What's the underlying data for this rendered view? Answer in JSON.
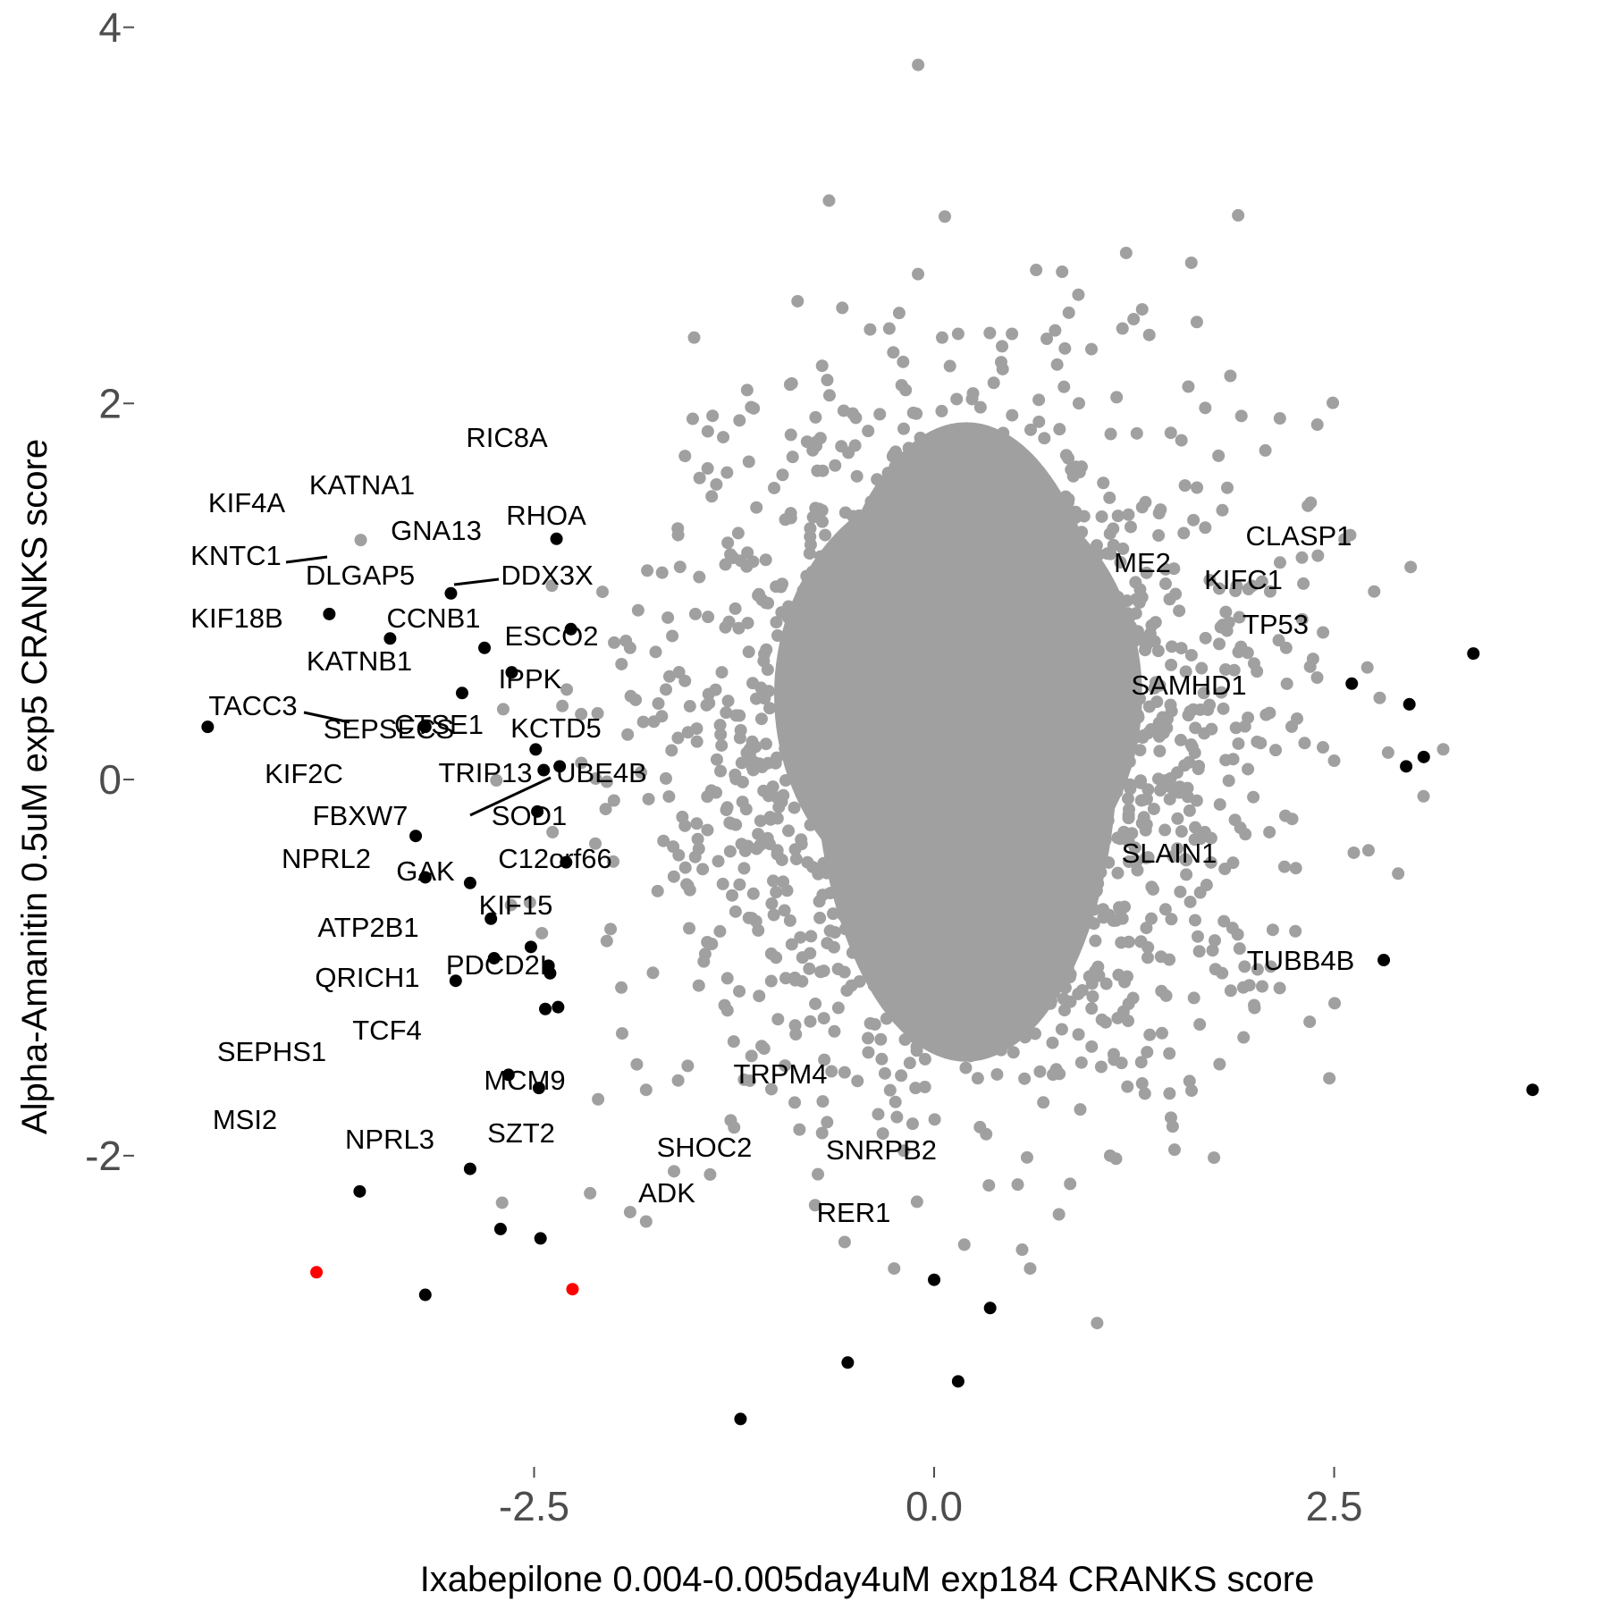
{
  "chart_data": {
    "type": "scatter",
    "xlabel": "Ixabepilone 0.004-0.005day4uM exp184 CRANKS score",
    "ylabel": "Alpha-Amanitin 0.5uM exp5 CRANKS score",
    "xlim": [
      -5.0,
      4.05
    ],
    "ylim": [
      -3.65,
      4.05
    ],
    "x_ticks": [
      -2.5,
      0.0,
      2.5
    ],
    "x_tick_labels": [
      "-2.5",
      "0.0",
      "2.5"
    ],
    "y_ticks": [
      -2,
      0,
      2,
      4
    ],
    "y_tick_labels": [
      "-2",
      "0",
      "2",
      "4"
    ],
    "grid": false,
    "legend": "none",
    "colors": {
      "background": "#f0f0f0",
      "hidden": "#a0a0a0",
      "highlighted": "#000000",
      "special": "#ff0000"
    },
    "background_cloud": {
      "note_hidden_points": "dense cloud of unlabeled genes, centered near (0.2, 0.2)",
      "points": [
        [
          -0.1,
          3.8
        ],
        [
          1.9,
          3.0
        ],
        [
          1.2,
          2.8
        ],
        [
          0.8,
          2.7
        ],
        [
          1.3,
          2.5
        ],
        [
          -1.5,
          2.35
        ],
        [
          0.05,
          2.35
        ],
        [
          0.15,
          2.37
        ],
        [
          -0.7,
          2.2
        ],
        [
          -0.9,
          2.1
        ],
        [
          2.07,
          1.75
        ],
        [
          2.6,
          1.3
        ],
        [
          2.75,
          1.0
        ],
        [
          -1.7,
          1.1
        ],
        [
          -1.0,
          1.55
        ],
        [
          2.9,
          -0.5
        ],
        [
          2.05,
          -1.1
        ],
        [
          2.0,
          -1.2
        ],
        [
          -1.95,
          -1.35
        ],
        [
          -1.8,
          -1.65
        ],
        [
          -1.6,
          -1.6
        ],
        [
          -1.25,
          -1.85
        ],
        [
          -2.1,
          -1.7
        ],
        [
          -0.25,
          -2.6
        ],
        [
          0.55,
          -2.5
        ],
        [
          0.6,
          -2.6
        ],
        [
          -1.8,
          -2.35
        ],
        [
          -1.9,
          -2.3
        ],
        [
          -2.15,
          -2.2
        ],
        [
          -2.7,
          -2.25
        ],
        [
          -1.4,
          -2.1
        ],
        [
          1.1,
          -2.0
        ],
        [
          0.85,
          -2.15
        ],
        [
          2.5,
          0.1
        ],
        [
          2.35,
          0.6
        ],
        [
          2.2,
          0.7
        ],
        [
          2.1,
          1.0
        ],
        [
          -1.9,
          0.7
        ],
        [
          -1.85,
          0.9
        ],
        [
          -1.6,
          1.3
        ]
      ]
    },
    "labeled_genes": [
      {
        "gene": "RIC8A",
        "x": -2.36,
        "y": 1.28,
        "color": "black"
      },
      {
        "gene": "KATNA1",
        "x": -3.02,
        "y": 0.99,
        "color": "black"
      },
      {
        "gene": "KIF4A",
        "x": -3.78,
        "y": 0.88,
        "color": "black"
      },
      {
        "gene": "RHOA",
        "x": -2.27,
        "y": 0.8,
        "color": "black"
      },
      {
        "gene": "GNA13",
        "x": -2.81,
        "y": 0.7,
        "color": "black"
      },
      {
        "gene": "KNTC1",
        "x": -3.4,
        "y": 0.75,
        "color": "black"
      },
      {
        "gene": "DDX3X",
        "x": -2.64,
        "y": 0.57,
        "color": "black"
      },
      {
        "gene": "DLGAP5",
        "x": -2.95,
        "y": 0.46,
        "color": "black"
      },
      {
        "gene": "KIF18B",
        "x": -4.54,
        "y": 0.28,
        "color": "black"
      },
      {
        "gene": "CCNB1",
        "x": -3.18,
        "y": 0.28,
        "color": "black"
      },
      {
        "gene": "ESCO2",
        "x": -2.49,
        "y": 0.16,
        "color": "black"
      },
      {
        "gene": "KATNB1",
        "x": -2.44,
        "y": 0.05,
        "color": "black"
      },
      {
        "gene": "IPPK",
        "x": -2.34,
        "y": 0.07,
        "color": "black"
      },
      {
        "gene": "TACC3",
        "x": -3.24,
        "y": -0.3,
        "color": "black"
      },
      {
        "gene": "CTSE1",
        "x": -2.48,
        "y": -0.17,
        "color": "black"
      },
      {
        "gene": "SEPSECS",
        "x": -3.18,
        "y": -0.52,
        "color": "black"
      },
      {
        "gene": "KCTD5",
        "x": -2.3,
        "y": -0.44,
        "color": "black"
      },
      {
        "gene": "KIF2C",
        "x": -2.9,
        "y": -0.55,
        "color": "black"
      },
      {
        "gene": "TRIP13",
        "x": -2.77,
        "y": -0.74,
        "color": "black"
      },
      {
        "gene": "UBE4B",
        "x": -2.52,
        "y": -0.89,
        "color": "black"
      },
      {
        "gene": "FBXW7",
        "x": -2.75,
        "y": -0.95,
        "color": "black"
      },
      {
        "gene": "SOD1",
        "x": -2.41,
        "y": -0.99,
        "color": "black"
      },
      {
        "gene": "NPRL2",
        "x": -2.99,
        "y": -1.07,
        "color": "black"
      },
      {
        "gene": "C12orf66",
        "x": -2.35,
        "y": -1.21,
        "color": "black"
      },
      {
        "gene": "GAK",
        "x": -2.43,
        "y": -1.22,
        "color": "black"
      },
      {
        "gene": "ATP2B1",
        "x": -2.66,
        "y": -1.57,
        "color": "black"
      },
      {
        "gene": "PDCD2L",
        "x": -2.47,
        "y": -1.64,
        "color": "black"
      },
      {
        "gene": "KIF15",
        "x": -2.4,
        "y": -1.03,
        "color": "black"
      },
      {
        "gene": "QRICH1",
        "x": -2.9,
        "y": -2.07,
        "color": "black"
      },
      {
        "gene": "SEPHS1",
        "x": -3.59,
        "y": -2.19,
        "color": "black"
      },
      {
        "gene": "TCF4",
        "x": -2.71,
        "y": -2.39,
        "color": "black"
      },
      {
        "gene": "MCM9",
        "x": -2.46,
        "y": -2.44,
        "color": "black"
      },
      {
        "gene": "MSI2",
        "x": -3.86,
        "y": -2.62,
        "color": "red"
      },
      {
        "gene": "SZT2",
        "x": -2.26,
        "y": -2.71,
        "color": "red"
      },
      {
        "gene": "NPRL3",
        "x": -3.18,
        "y": -2.74,
        "color": "black"
      },
      {
        "gene": "TRPM4",
        "x": 0.0,
        "y": -2.66,
        "color": "black"
      },
      {
        "gene": "SNRPB2",
        "x": 0.35,
        "y": -2.81,
        "color": "black"
      },
      {
        "gene": "SHOC2",
        "x": -0.54,
        "y": -3.1,
        "color": "black"
      },
      {
        "gene": "RER1",
        "x": 0.15,
        "y": -3.2,
        "color": "black"
      },
      {
        "gene": "ADK",
        "x": -1.21,
        "y": -3.4,
        "color": "black"
      },
      {
        "gene": "CLASP1",
        "x": 3.37,
        "y": 0.67,
        "color": "black"
      },
      {
        "gene": "ME2",
        "x": 2.61,
        "y": 0.51,
        "color": "black"
      },
      {
        "gene": "KIFC1",
        "x": 2.97,
        "y": 0.4,
        "color": "black"
      },
      {
        "gene": "TP53",
        "x": 3.06,
        "y": 0.12,
        "color": "black"
      },
      {
        "gene": "SAMHD1",
        "x": 2.95,
        "y": 0.07,
        "color": "black"
      },
      {
        "gene": "SLAIN1",
        "x": 2.81,
        "y": -0.96,
        "color": "black"
      },
      {
        "gene": "TUBB4B",
        "x": 3.74,
        "y": -1.65,
        "color": "black"
      }
    ]
  }
}
